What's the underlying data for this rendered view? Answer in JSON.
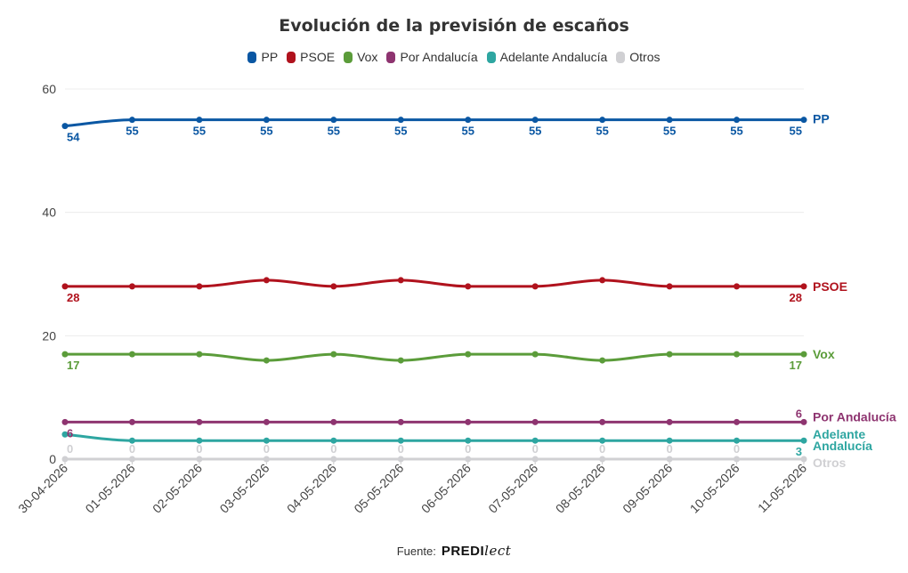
{
  "chart_data": {
    "type": "line",
    "title": "Evolución de la previsión de escaños",
    "categories": [
      "30-04-2026",
      "01-05-2026",
      "02-05-2026",
      "03-05-2026",
      "04-05-2026",
      "05-05-2026",
      "06-05-2026",
      "07-05-2026",
      "08-05-2026",
      "09-05-2026",
      "10-05-2026",
      "11-05-2026"
    ],
    "ylim": [
      0,
      60
    ],
    "yticks": [
      0,
      20,
      40,
      60
    ],
    "grid": true,
    "legend_position": "top",
    "series": [
      {
        "name": "PP",
        "color": "#0a57a3",
        "values": [
          54,
          55,
          55,
          55,
          55,
          55,
          55,
          55,
          55,
          55,
          55,
          55
        ],
        "end_label": [
          "PP"
        ],
        "label_style": "all"
      },
      {
        "name": "PSOE",
        "color": "#b0121d",
        "values": [
          28,
          28,
          28,
          29,
          28,
          29,
          28,
          28,
          29,
          28,
          28,
          28
        ],
        "end_label": [
          "PSOE"
        ],
        "label_style": "ends"
      },
      {
        "name": "Vox",
        "color": "#5b9c3a",
        "values": [
          17,
          17,
          17,
          16,
          17,
          16,
          17,
          17,
          16,
          17,
          17,
          17
        ],
        "end_label": [
          "Vox"
        ],
        "label_style": "ends"
      },
      {
        "name": "Por Andalucía",
        "color": "#8e3470",
        "values": [
          6,
          6,
          6,
          6,
          6,
          6,
          6,
          6,
          6,
          6,
          6,
          6
        ],
        "end_label": [
          "Por Andalucía"
        ],
        "label_style": "ends"
      },
      {
        "name": "Adelante Andalucía",
        "color": "#2ea6a1",
        "values": [
          4,
          3,
          3,
          3,
          3,
          3,
          3,
          3,
          3,
          3,
          3,
          3
        ],
        "end_label": [
          "Adelante",
          "Andalucía"
        ],
        "label_style": "end"
      },
      {
        "name": "Otros",
        "color": "#d0d0d3",
        "values": [
          0,
          0,
          0,
          0,
          0,
          0,
          0,
          0,
          0,
          0,
          0,
          0
        ],
        "end_label": [
          "Otros"
        ],
        "label_style": "all-but-last"
      }
    ]
  },
  "footer": {
    "source_label": "Fuente:",
    "logo_text": "PREDI",
    "logo_script": "lect"
  }
}
